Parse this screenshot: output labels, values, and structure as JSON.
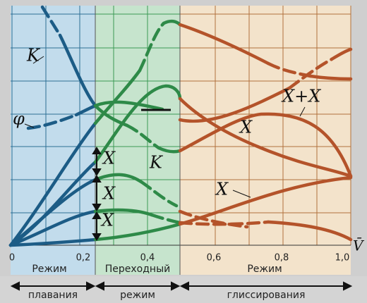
{
  "axis": {
    "ticks": [
      "0",
      "0,2",
      "0,4",
      "0,6",
      "0,8",
      "1,0"
    ],
    "label": "V̄"
  },
  "regions": [
    {
      "title": "Режим",
      "subtitle": "плавания"
    },
    {
      "title": "Переходный",
      "subtitle": "режим"
    },
    {
      "title": "Режим",
      "subtitle": "глиссирования"
    }
  ],
  "curve_labels": [
    "K",
    "φ",
    "X",
    "X",
    "X",
    "K",
    "X",
    "X+X",
    "X"
  ]
}
